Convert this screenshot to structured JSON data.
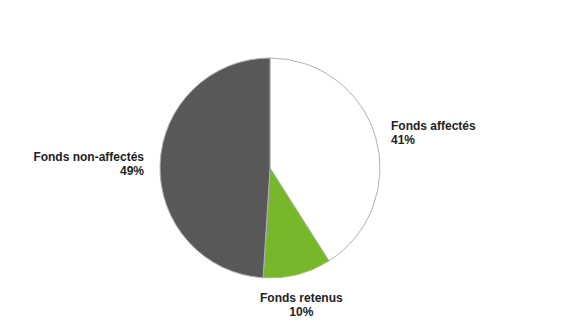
{
  "chart_data": {
    "type": "pie",
    "categories": [
      "Fonds affectés",
      "Fonds retenus",
      "Fonds non-affectés"
    ],
    "values": [
      41,
      10,
      49
    ],
    "value_labels": [
      "41%",
      "10%",
      "49%"
    ],
    "colors": [
      "#ffffff",
      "#76b82a",
      "#585858"
    ],
    "data_labels": true
  }
}
